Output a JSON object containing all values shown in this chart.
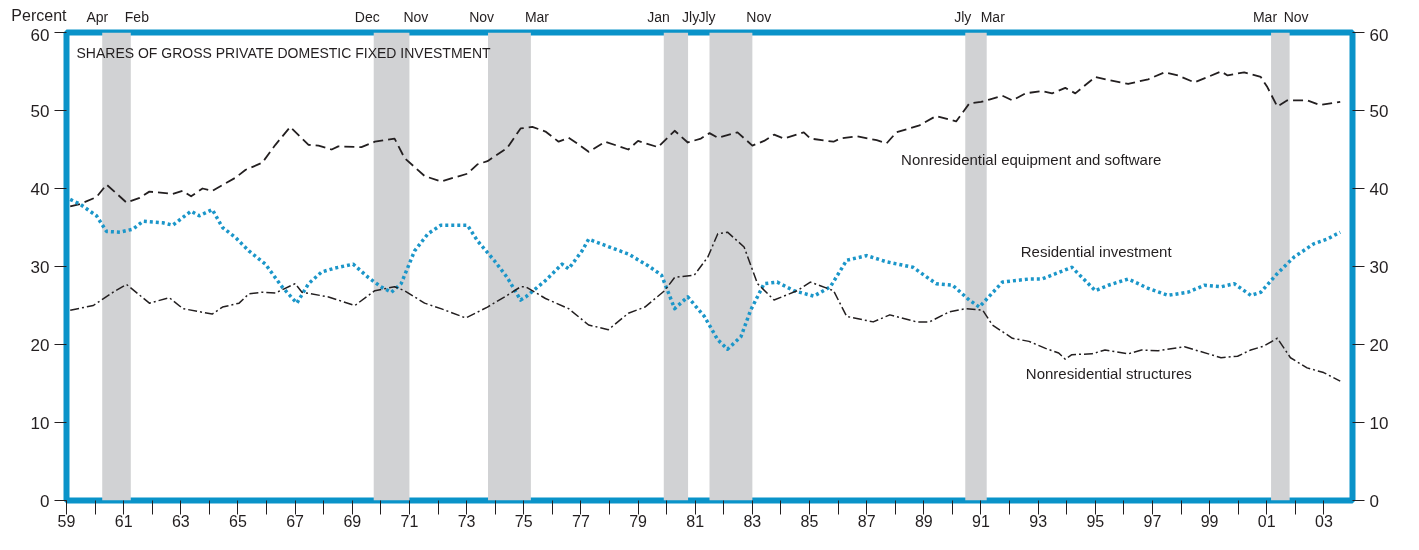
{
  "chart_data": {
    "type": "line",
    "title": "SHARES OF GROSS PRIVATE DOMESTIC FIXED INVESTMENT",
    "ylabel": "Percent",
    "xlim": [
      1959,
      2004
    ],
    "ylim": [
      0,
      60
    ],
    "yticks": [
      0,
      10,
      20,
      30,
      40,
      50,
      60
    ],
    "y2lim": [
      0,
      60
    ],
    "y2ticks": [
      0,
      10,
      20,
      30,
      40,
      50,
      60
    ],
    "xticks": [
      {
        "value": 1959,
        "label": "59"
      },
      {
        "value": 1960,
        "label": null
      },
      {
        "value": 1961,
        "label": "61"
      },
      {
        "value": 1962,
        "label": null
      },
      {
        "value": 1963,
        "label": "63"
      },
      {
        "value": 1964,
        "label": null
      },
      {
        "value": 1965,
        "label": "65"
      },
      {
        "value": 1966,
        "label": null
      },
      {
        "value": 1967,
        "label": "67"
      },
      {
        "value": 1968,
        "label": null
      },
      {
        "value": 1969,
        "label": "69"
      },
      {
        "value": 1970,
        "label": null
      },
      {
        "value": 1971,
        "label": "71"
      },
      {
        "value": 1972,
        "label": null
      },
      {
        "value": 1973,
        "label": "73"
      },
      {
        "value": 1974,
        "label": null
      },
      {
        "value": 1975,
        "label": "75"
      },
      {
        "value": 1976,
        "label": null
      },
      {
        "value": 1977,
        "label": "77"
      },
      {
        "value": 1978,
        "label": null
      },
      {
        "value": 1979,
        "label": "79"
      },
      {
        "value": 1980,
        "label": null
      },
      {
        "value": 1981,
        "label": "81"
      },
      {
        "value": 1982,
        "label": null
      },
      {
        "value": 1983,
        "label": "83"
      },
      {
        "value": 1984,
        "label": null
      },
      {
        "value": 1985,
        "label": "85"
      },
      {
        "value": 1986,
        "label": null
      },
      {
        "value": 1987,
        "label": "87"
      },
      {
        "value": 1988,
        "label": null
      },
      {
        "value": 1989,
        "label": "89"
      },
      {
        "value": 1990,
        "label": null
      },
      {
        "value": 1991,
        "label": "91"
      },
      {
        "value": 1992,
        "label": null
      },
      {
        "value": 1993,
        "label": "93"
      },
      {
        "value": 1994,
        "label": null
      },
      {
        "value": 1995,
        "label": "95"
      },
      {
        "value": 1996,
        "label": null
      },
      {
        "value": 1997,
        "label": "97"
      },
      {
        "value": 1998,
        "label": null
      },
      {
        "value": 1999,
        "label": "99"
      },
      {
        "value": 2000,
        "label": null
      },
      {
        "value": 2001,
        "label": "01"
      },
      {
        "value": 2002,
        "label": null
      },
      {
        "value": 2003,
        "label": "03"
      }
    ],
    "bands": [
      {
        "axis": "x",
        "from": 1960.25,
        "to": 1961.25,
        "color": "#d1d2d4"
      },
      {
        "axis": "x",
        "from": 1969.75,
        "to": 1971.0,
        "color": "#d1d2d4"
      },
      {
        "axis": "x",
        "from": 1973.75,
        "to": 1975.25,
        "color": "#d1d2d4"
      },
      {
        "axis": "x",
        "from": 1979.9,
        "to": 1980.75,
        "color": "#d1d2d4"
      },
      {
        "axis": "x",
        "from": 1981.5,
        "to": 1983.0,
        "color": "#d1d2d4"
      },
      {
        "axis": "x",
        "from": 1990.45,
        "to": 1991.2,
        "color": "#d1d2d4"
      },
      {
        "axis": "x",
        "from": 2001.15,
        "to": 2001.8,
        "color": "#d1d2d4"
      }
    ],
    "annotations": [
      "Apr",
      "Feb",
      "Dec",
      "Nov",
      "Nov",
      "Mar",
      "Jan",
      "Jly",
      "Jly",
      "Nov",
      "Jly",
      "Mar",
      "Mar",
      "Nov"
    ],
    "series": [
      {
        "name": "Nonresidential equipment and software",
        "color": "#231f20",
        "line_style": "dashed",
        "x": [
          1959.13,
          1959.47,
          1960.05,
          1960.4,
          1961.1,
          1961.56,
          1961.9,
          1962.72,
          1963.07,
          1963.36,
          1963.76,
          1964.1,
          1964.92,
          1965.27,
          1965.85,
          1966.31,
          1966.83,
          1967.47,
          1967.82,
          1968.28,
          1968.51,
          1969.32,
          1969.79,
          1970.48,
          1970.83,
          1971.53,
          1972.1,
          1973.03,
          1973.38,
          1973.73,
          1974.42,
          1974.89,
          1975.3,
          1975.76,
          1976.22,
          1976.57,
          1976.86,
          1977.27,
          1977.85,
          1978.66,
          1979.0,
          1979.7,
          1980.28,
          1980.74,
          1981.2,
          1981.5,
          1981.79,
          1982.48,
          1983.0,
          1983.41,
          1983.76,
          1984.1,
          1984.8,
          1985.03,
          1985.84,
          1986.07,
          1986.65,
          1987.35,
          1987.7,
          1988.04,
          1988.85,
          1989.43,
          1990.13,
          1990.59,
          1991.0,
          1991.29,
          1991.75,
          1992.1,
          1992.56,
          1993.14,
          1993.49,
          1993.95,
          1994.3,
          1995.0,
          1995.46,
          1996.15,
          1996.85,
          1997.43,
          1997.89,
          1998.47,
          1999.4,
          1999.63,
          2000.21,
          2000.79,
          2001.02,
          2001.37,
          2001.72,
          2002.41,
          2002.87,
          2003.57
        ],
        "values": [
          37.7,
          38.0,
          38.9,
          40.5,
          38.2,
          38.8,
          39.6,
          39.3,
          39.7,
          39.0,
          40.0,
          39.7,
          41.4,
          42.4,
          43.3,
          45.6,
          47.9,
          45.6,
          45.5,
          45.0,
          45.4,
          45.3,
          46.0,
          46.4,
          43.9,
          41.6,
          40.9,
          41.9,
          43.1,
          43.5,
          45.2,
          47.7,
          47.9,
          47.3,
          46.0,
          46.5,
          45.8,
          44.7,
          46.0,
          45.0,
          46.1,
          45.3,
          47.4,
          45.9,
          46.4,
          47.1,
          46.5,
          47.2,
          45.5,
          46.1,
          46.9,
          46.4,
          47.2,
          46.4,
          46.0,
          46.4,
          46.7,
          46.2,
          45.8,
          47.2,
          48.1,
          49.3,
          48.6,
          50.9,
          51.1,
          51.4,
          51.9,
          51.3,
          52.2,
          52.5,
          52.2,
          52.9,
          52.2,
          54.3,
          53.9,
          53.4,
          54.0,
          54.9,
          54.5,
          53.6,
          55.0,
          54.5,
          54.9,
          54.3,
          53.0,
          50.5,
          51.3,
          51.3,
          50.7,
          51.1
        ]
      },
      {
        "name": "Residential investment",
        "color": "#1b96c9",
        "line_style": "dotted",
        "x": [
          1959.13,
          1959.47,
          1960.05,
          1960.4,
          1960.87,
          1961.33,
          1961.68,
          1962.37,
          1962.72,
          1963.36,
          1963.65,
          1964.1,
          1964.46,
          1964.92,
          1965.38,
          1965.96,
          1966.54,
          1967.06,
          1967.47,
          1967.93,
          1968.4,
          1969.03,
          1969.56,
          1970.0,
          1970.37,
          1970.71,
          1971.18,
          1971.65,
          1972.1,
          1973.03,
          1973.38,
          1973.96,
          1974.42,
          1974.89,
          1975.07,
          1975.76,
          1976.34,
          1976.57,
          1977.04,
          1977.27,
          1977.85,
          1978.66,
          1979.35,
          1979.82,
          1980.28,
          1980.74,
          1981.32,
          1981.79,
          1982.13,
          1982.6,
          1982.94,
          1983.41,
          1983.87,
          1984.45,
          1985.15,
          1985.73,
          1986.3,
          1987.0,
          1987.7,
          1988.62,
          1989.43,
          1990.01,
          1990.59,
          1990.94,
          1991.75,
          1992.68,
          1993.14,
          1994.18,
          1995.0,
          1995.46,
          1996.15,
          1996.85,
          1997.54,
          1998.24,
          1998.82,
          1999.4,
          1999.86,
          2000.44,
          2000.79,
          2001.37,
          2001.95,
          2002.64,
          2003.11,
          2003.57
        ],
        "values": [
          38.6,
          38.0,
          36.5,
          34.5,
          34.4,
          34.8,
          35.8,
          35.6,
          35.3,
          37.1,
          36.5,
          37.3,
          35.0,
          33.7,
          32.0,
          30.3,
          27.4,
          25.3,
          27.8,
          29.3,
          29.8,
          30.3,
          28.6,
          27.4,
          26.7,
          27.8,
          32.0,
          34.2,
          35.3,
          35.3,
          33.3,
          30.8,
          28.6,
          25.7,
          26.1,
          28.2,
          30.3,
          29.7,
          32.0,
          33.5,
          32.7,
          31.6,
          30.1,
          28.9,
          24.6,
          26.1,
          23.6,
          20.6,
          19.4,
          21.0,
          24.4,
          27.8,
          28.0,
          26.9,
          26.2,
          27.4,
          30.8,
          31.4,
          30.6,
          29.9,
          27.8,
          27.6,
          25.7,
          24.8,
          28.0,
          28.4,
          28.4,
          29.9,
          26.9,
          27.6,
          28.4,
          27.2,
          26.3,
          26.7,
          27.6,
          27.4,
          27.8,
          26.3,
          26.7,
          29.1,
          31.2,
          32.9,
          33.5,
          34.4
        ]
      },
      {
        "name": "Nonresidential structures",
        "color": "#231f20",
        "line_style": "dashdot",
        "x": [
          1959.13,
          1959.94,
          1960.63,
          1961.1,
          1961.9,
          1962.6,
          1963.07,
          1964.1,
          1964.46,
          1965.04,
          1965.38,
          1965.85,
          1966.31,
          1967.0,
          1967.24,
          1968.17,
          1969.09,
          1969.79,
          1970.48,
          1970.83,
          1971.53,
          1972.1,
          1972.97,
          1973.73,
          1974.42,
          1974.89,
          1975.07,
          1975.76,
          1976.57,
          1977.27,
          1977.96,
          1978.66,
          1979.24,
          1979.93,
          1980.28,
          1980.97,
          1981.44,
          1981.79,
          1982.13,
          1982.71,
          1983.18,
          1983.76,
          1984.57,
          1985.03,
          1985.84,
          1986.3,
          1987.23,
          1987.81,
          1988.74,
          1989.2,
          1989.9,
          1990.48,
          1991.06,
          1991.4,
          1992.1,
          1992.68,
          1993.26,
          1993.72,
          1993.95,
          1994.18,
          1994.88,
          1995.34,
          1996.15,
          1996.62,
          1997.2,
          1998.12,
          1999.05,
          1999.4,
          1999.98,
          2000.44,
          2000.9,
          2001.37,
          2001.83,
          2002.41,
          2002.99,
          2003.57
        ],
        "values": [
          24.4,
          25.0,
          26.7,
          27.7,
          25.3,
          26.0,
          24.6,
          23.9,
          24.8,
          25.3,
          26.5,
          26.7,
          26.6,
          27.8,
          26.7,
          26.1,
          25.0,
          26.9,
          27.4,
          26.9,
          25.3,
          24.6,
          23.4,
          24.8,
          26.3,
          27.4,
          27.4,
          25.9,
          24.6,
          22.5,
          21.9,
          24.0,
          24.8,
          26.9,
          28.6,
          28.9,
          31.2,
          34.2,
          34.4,
          32.5,
          27.8,
          25.7,
          26.9,
          28.0,
          26.9,
          23.6,
          22.9,
          23.8,
          22.9,
          22.9,
          24.2,
          24.6,
          24.4,
          22.5,
          20.8,
          20.4,
          19.5,
          18.9,
          18.1,
          18.7,
          18.8,
          19.3,
          18.8,
          19.3,
          19.2,
          19.7,
          18.7,
          18.3,
          18.5,
          19.3,
          19.8,
          20.8,
          18.3,
          17.0,
          16.4,
          15.3
        ]
      }
    ]
  }
}
